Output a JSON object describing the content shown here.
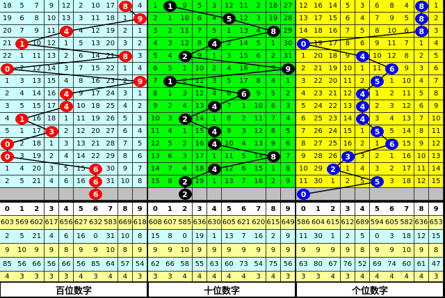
{
  "panels": [
    {
      "label": "百位数字",
      "bg": "#ccffff",
      "ball_color": "#ff0000",
      "line_color": "#000000",
      "rows": [
        [
          18,
          5,
          7,
          9,
          12,
          2,
          10,
          17,
          8,
          4
        ],
        [
          19,
          6,
          8,
          10,
          13,
          3,
          11,
          18,
          1,
          9
        ],
        [
          20,
          7,
          9,
          11,
          4,
          4,
          12,
          19,
          2,
          1
        ],
        [
          21,
          1,
          10,
          12,
          1,
          5,
          13,
          20,
          3,
          2
        ],
        [
          22,
          1,
          11,
          13,
          2,
          6,
          14,
          21,
          8,
          3
        ],
        [
          0,
          2,
          12,
          14,
          3,
          7,
          15,
          22,
          1,
          4
        ],
        [
          1,
          3,
          13,
          15,
          4,
          8,
          16,
          23,
          2,
          9
        ],
        [
          2,
          4,
          14,
          16,
          4,
          9,
          17,
          24,
          3,
          1
        ],
        [
          3,
          5,
          15,
          17,
          4,
          10,
          18,
          25,
          4,
          2
        ],
        [
          4,
          1,
          16,
          18,
          1,
          11,
          19,
          26,
          5,
          3
        ],
        [
          5,
          1,
          17,
          3,
          2,
          12,
          20,
          27,
          6,
          4
        ],
        [
          0,
          2,
          18,
          1,
          3,
          13,
          21,
          28,
          7,
          5
        ],
        [
          0,
          3,
          19,
          2,
          4,
          14,
          22,
          29,
          8,
          6
        ],
        [
          1,
          4,
          20,
          3,
          5,
          15,
          6,
          30,
          9,
          7
        ],
        [
          2,
          5,
          21,
          4,
          6,
          16,
          6,
          31,
          10,
          8
        ]
      ],
      "balls": [
        8,
        9,
        4,
        1,
        8,
        0,
        9,
        4,
        4,
        1,
        3,
        0,
        0,
        6,
        6,
        6
      ],
      "digits": [
        "0",
        "1",
        "2",
        "3",
        "4",
        "5",
        "6",
        "7",
        "8",
        "9"
      ],
      "stats": [
        [
          603,
          569,
          602,
          617,
          656,
          627,
          632,
          583,
          669,
          618
        ],
        [
          2,
          5,
          21,
          4,
          6,
          16,
          0,
          31,
          10,
          8
        ],
        [
          9,
          10,
          9,
          9,
          8,
          9,
          9,
          10,
          8,
          9
        ],
        [
          85,
          56,
          66,
          56,
          66,
          56,
          85,
          64,
          57,
          54
        ],
        [
          4,
          3,
          3,
          3,
          3,
          4,
          3,
          4,
          4,
          3
        ]
      ]
    },
    {
      "label": "十位数字",
      "bg": "#00ff00",
      "ball_color": "#000000",
      "line_color": "#000000",
      "rows": [
        [
          1,
          1,
          9,
          5,
          3,
          12,
          11,
          2,
          18,
          27
        ],
        [
          2,
          1,
          10,
          6,
          4,
          5,
          12,
          3,
          19,
          28
        ],
        [
          3,
          2,
          11,
          7,
          5,
          1,
          13,
          4,
          8,
          29
        ],
        [
          4,
          3,
          12,
          8,
          4,
          2,
          14,
          5,
          1,
          30
        ],
        [
          5,
          4,
          2,
          9,
          1,
          3,
          15,
          6,
          2,
          31
        ],
        [
          6,
          5,
          1,
          10,
          2,
          4,
          16,
          7,
          3,
          9
        ],
        [
          7,
          1,
          2,
          11,
          3,
          5,
          17,
          8,
          4,
          1
        ],
        [
          8,
          1,
          3,
          12,
          4,
          6,
          6,
          9,
          5,
          2
        ],
        [
          9,
          2,
          4,
          13,
          4,
          7,
          1,
          10,
          6,
          3
        ],
        [
          10,
          3,
          2,
          14,
          1,
          8,
          2,
          11,
          7,
          4
        ],
        [
          11,
          4,
          1,
          15,
          4,
          9,
          3,
          12,
          8,
          5
        ],
        [
          12,
          5,
          2,
          16,
          4,
          10,
          4,
          13,
          9,
          6
        ],
        [
          13,
          6,
          3,
          17,
          1,
          11,
          5,
          14,
          8,
          7
        ],
        [
          14,
          7,
          4,
          18,
          4,
          12,
          6,
          15,
          1,
          8
        ],
        [
          15,
          8,
          2,
          19,
          1,
          13,
          7,
          16,
          2,
          9
        ]
      ],
      "balls": [
        1,
        5,
        8,
        4,
        2,
        9,
        1,
        6,
        4,
        2,
        4,
        4,
        8,
        4,
        2,
        2
      ],
      "digits": [
        "0",
        "1",
        "2",
        "3",
        "4",
        "5",
        "6",
        "7",
        "8",
        "9"
      ],
      "stats": [
        [
          608,
          607,
          585,
          636,
          630,
          605,
          621,
          620,
          615,
          649
        ],
        [
          15,
          8,
          0,
          19,
          1,
          13,
          7,
          16,
          2,
          9
        ],
        [
          9,
          9,
          10,
          9,
          9,
          9,
          9,
          9,
          9,
          9
        ],
        [
          62,
          66,
          58,
          55,
          63,
          60,
          73,
          54,
          75,
          56
        ],
        [
          3,
          3,
          4,
          4,
          4,
          4,
          4,
          3,
          4,
          3
        ]
      ]
    },
    {
      "label": "个位数字",
      "bg": "#ffff00",
      "ball_color": "#0000ff",
      "line_color": "#000000",
      "rows": [
        [
          12,
          16,
          14,
          5,
          3,
          6,
          8,
          4,
          8,
          1
        ],
        [
          13,
          17,
          15,
          6,
          4,
          7,
          9,
          5,
          8,
          2
        ],
        [
          14,
          18,
          16,
          7,
          5,
          8,
          10,
          6,
          8,
          3
        ],
        [
          0,
          19,
          17,
          8,
          6,
          9,
          11,
          7,
          1,
          4
        ],
        [
          1,
          20,
          18,
          9,
          4,
          10,
          12,
          8,
          2,
          5
        ],
        [
          2,
          21,
          19,
          10,
          1,
          11,
          6,
          9,
          3,
          6
        ],
        [
          3,
          22,
          20,
          11,
          2,
          5,
          1,
          10,
          4,
          7
        ],
        [
          4,
          23,
          21,
          12,
          4,
          1,
          2,
          11,
          5,
          8
        ],
        [
          5,
          24,
          22,
          13,
          4,
          2,
          3,
          12,
          6,
          9
        ],
        [
          6,
          25,
          23,
          14,
          4,
          3,
          4,
          13,
          7,
          10
        ],
        [
          7,
          26,
          24,
          15,
          1,
          5,
          5,
          14,
          8,
          11
        ],
        [
          8,
          27,
          25,
          16,
          2,
          1,
          6,
          15,
          9,
          12
        ],
        [
          9,
          28,
          26,
          3,
          3,
          2,
          1,
          16,
          10,
          13
        ],
        [
          10,
          29,
          2,
          1,
          4,
          3,
          2,
          17,
          11,
          14
        ],
        [
          11,
          30,
          1,
          2,
          5,
          5,
          3,
          18,
          12,
          15
        ]
      ],
      "balls": [
        8,
        8,
        8,
        0,
        4,
        6,
        5,
        4,
        4,
        4,
        5,
        6,
        3,
        2,
        5,
        0
      ],
      "digits": [
        "0",
        "1",
        "2",
        "3",
        "4",
        "5",
        "6",
        "7",
        "8",
        "9"
      ],
      "stats": [
        [
          586,
          604,
          615,
          612,
          689,
          594,
          605,
          582,
          636,
          653
        ],
        [
          11,
          30,
          1,
          2,
          5,
          0,
          3,
          18,
          12,
          15
        ],
        [
          9,
          9,
          9,
          9,
          8,
          9,
          9,
          10,
          9,
          8
        ],
        [
          63,
          80,
          67,
          76,
          52,
          69,
          74,
          60,
          61,
          47
        ],
        [
          3,
          3,
          4,
          3,
          4,
          4,
          4,
          4,
          4,
          3
        ]
      ]
    }
  ]
}
